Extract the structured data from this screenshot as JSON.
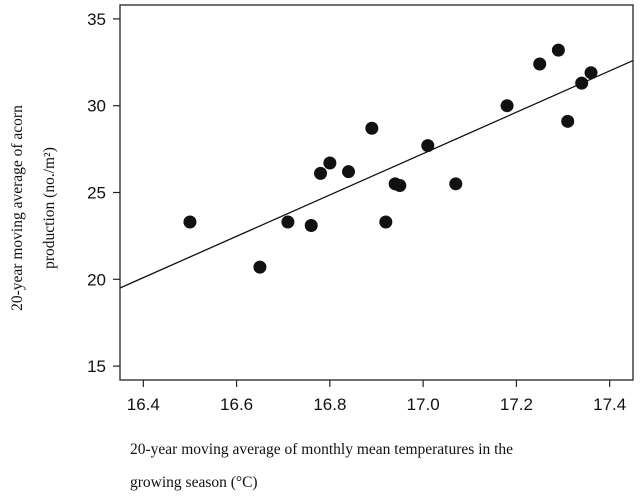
{
  "chart_data": {
    "type": "scatter",
    "title": "",
    "xlabel_lines": [
      "20-year moving average of monthly mean temperatures in the",
      "growing season (°C)"
    ],
    "ylabel_lines": [
      "20-year moving average of acorn",
      "production (no./m²)"
    ],
    "xlim": [
      16.35,
      17.45
    ],
    "ylim": [
      14.2,
      35.8
    ],
    "xticks": [
      16.4,
      16.6,
      16.8,
      17.0,
      17.2,
      17.4
    ],
    "xtick_labels": [
      "16.4",
      "16.6",
      "16.8",
      "17.0",
      "17.2",
      "17.4"
    ],
    "yticks": [
      15,
      20,
      25,
      30,
      35
    ],
    "ytick_labels": [
      "15",
      "20",
      "25",
      "30",
      "35"
    ],
    "grid": false,
    "series": [
      {
        "points": [
          {
            "x": 16.5,
            "y": 23.3
          },
          {
            "x": 16.65,
            "y": 20.7
          },
          {
            "x": 16.71,
            "y": 23.3
          },
          {
            "x": 16.76,
            "y": 23.1
          },
          {
            "x": 16.78,
            "y": 26.1
          },
          {
            "x": 16.8,
            "y": 26.7
          },
          {
            "x": 16.84,
            "y": 26.2
          },
          {
            "x": 16.89,
            "y": 28.7
          },
          {
            "x": 16.92,
            "y": 23.3
          },
          {
            "x": 16.94,
            "y": 25.5
          },
          {
            "x": 16.95,
            "y": 25.4
          },
          {
            "x": 17.01,
            "y": 27.7
          },
          {
            "x": 17.07,
            "y": 25.5
          },
          {
            "x": 17.18,
            "y": 30.0
          },
          {
            "x": 17.25,
            "y": 32.4
          },
          {
            "x": 17.29,
            "y": 33.2
          },
          {
            "x": 17.31,
            "y": 29.1
          },
          {
            "x": 17.34,
            "y": 31.3
          },
          {
            "x": 17.36,
            "y": 31.9
          }
        ]
      }
    ],
    "regression_line": {
      "x": [
        16.35,
        17.45
      ],
      "y": [
        19.5,
        32.6
      ]
    },
    "colors": {
      "points": "#111111",
      "line": "#111111",
      "axes": "#222222"
    }
  }
}
